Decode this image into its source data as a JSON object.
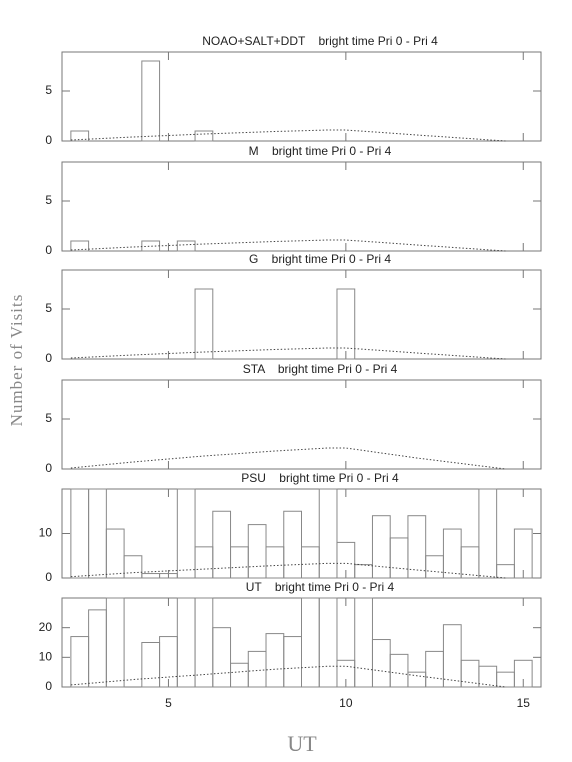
{
  "xlabel": "UT",
  "ylabel": "Number of Visits",
  "chart_data": [
    {
      "type": "histogram",
      "title": "NOAO+SALT+DDT    bright time Pri 0 - Pri 4",
      "bins": [
        2.25,
        2.75,
        3.25,
        3.75,
        4.25,
        4.75,
        5.25,
        5.75,
        6.25,
        6.75,
        7.25,
        7.75,
        8.25,
        8.75,
        9.25,
        9.75,
        10.25,
        10.75,
        11.25,
        11.75,
        12.25,
        12.75,
        13.25,
        13.75,
        14.25,
        14.75,
        15.25
      ],
      "counts": [
        1,
        0,
        0,
        0,
        8,
        0,
        0,
        1,
        0,
        0,
        0,
        0,
        0,
        0,
        0,
        0,
        0,
        0,
        0,
        0,
        0,
        0,
        0,
        0,
        0,
        0
      ],
      "curve": {
        "x": [
          2.25,
          4,
          6,
          8,
          9.5,
          10,
          12,
          14.5
        ],
        "y": [
          0.1,
          0.4,
          0.7,
          0.95,
          1.1,
          1.1,
          0.6,
          0
        ]
      },
      "xlim": [
        2,
        15.5
      ],
      "xticks": [
        5,
        10,
        15
      ],
      "ylim": [
        0,
        8.9
      ],
      "yticks": [
        0,
        5
      ]
    },
    {
      "type": "histogram",
      "title": "M    bright time Pri 0 - Pri 4",
      "bins": [
        2.25,
        2.75,
        3.25,
        3.75,
        4.25,
        4.75,
        5.25,
        5.75,
        6.25,
        6.75,
        7.25,
        7.75,
        8.25,
        8.75,
        9.25,
        9.75,
        10.25,
        10.75,
        11.25,
        11.75,
        12.25,
        12.75,
        13.25,
        13.75,
        14.25,
        14.75,
        15.25
      ],
      "counts": [
        1,
        0,
        0,
        0,
        1,
        0,
        1,
        0,
        0,
        0,
        0,
        0,
        0,
        0,
        0,
        0,
        0,
        0,
        0,
        0,
        0,
        0,
        0,
        0,
        0,
        0
      ],
      "curve": {
        "x": [
          2.25,
          4,
          6,
          8,
          9.5,
          10,
          12,
          14.5
        ],
        "y": [
          0.1,
          0.4,
          0.7,
          0.95,
          1.1,
          1.1,
          0.6,
          0
        ]
      },
      "xlim": [
        2,
        15.5
      ],
      "xticks": [
        5,
        10,
        15
      ],
      "ylim": [
        0,
        8.9
      ],
      "yticks": [
        0,
        5
      ]
    },
    {
      "type": "histogram",
      "title": "G    bright time Pri 0 - Pri 4",
      "bins": [
        2.25,
        2.75,
        3.25,
        3.75,
        4.25,
        4.75,
        5.25,
        5.75,
        6.25,
        6.75,
        7.25,
        7.75,
        8.25,
        8.75,
        9.25,
        9.75,
        10.25,
        10.75,
        11.25,
        11.75,
        12.25,
        12.75,
        13.25,
        13.75,
        14.25,
        14.75,
        15.25
      ],
      "counts": [
        0,
        0,
        0,
        0,
        0,
        0,
        0,
        7,
        0,
        0,
        0,
        0,
        0,
        0,
        0,
        7,
        0,
        0,
        0,
        0,
        0,
        0,
        0,
        0,
        0,
        0
      ],
      "curve": {
        "x": [
          2.25,
          4,
          6,
          8,
          9.5,
          10,
          12,
          14.5
        ],
        "y": [
          0.1,
          0.4,
          0.7,
          0.95,
          1.1,
          1.1,
          0.6,
          0
        ]
      },
      "xlim": [
        2,
        15.5
      ],
      "xticks": [
        5,
        10,
        15
      ],
      "ylim": [
        0,
        8.9
      ],
      "yticks": [
        0,
        5
      ]
    },
    {
      "type": "histogram",
      "title": "STA    bright time Pri 0 - Pri 4",
      "bins": [
        2.25,
        2.75,
        3.25,
        3.75,
        4.25,
        4.75,
        5.25,
        5.75,
        6.25,
        6.75,
        7.25,
        7.75,
        8.25,
        8.75,
        9.25,
        9.75,
        10.25,
        10.75,
        11.25,
        11.75,
        12.25,
        12.75,
        13.25,
        13.75,
        14.25,
        14.75,
        15.25
      ],
      "counts": [
        0,
        0,
        0,
        0,
        0,
        0,
        0,
        0,
        0,
        0,
        0,
        0,
        0,
        0,
        0,
        0,
        0,
        0,
        0,
        0,
        0,
        0,
        0,
        0,
        0,
        0
      ],
      "curve": {
        "x": [
          2.25,
          4,
          6,
          8,
          9.5,
          10,
          12,
          14.5
        ],
        "y": [
          0.1,
          0.7,
          1.3,
          1.8,
          2.1,
          2.1,
          1.1,
          0
        ]
      },
      "xlim": [
        2,
        15.5
      ],
      "xticks": [
        5,
        10,
        15
      ],
      "ylim": [
        0,
        8.9
      ],
      "yticks": [
        0,
        5
      ]
    },
    {
      "type": "histogram",
      "title": "PSU    bright time Pri 0 - Pri 4",
      "bins": [
        2.25,
        2.75,
        3.25,
        3.75,
        4.25,
        4.75,
        5.25,
        5.75,
        6.25,
        6.75,
        7.25,
        7.75,
        8.25,
        8.75,
        9.25,
        9.75,
        10.25,
        10.75,
        11.25,
        11.75,
        12.25,
        12.75,
        13.25,
        13.75,
        14.25,
        14.75,
        15.25
      ],
      "counts": [
        20,
        20,
        11,
        5,
        1,
        1,
        20,
        7,
        15,
        7,
        12,
        7,
        15,
        7,
        20,
        8,
        3,
        14,
        9,
        14,
        5,
        11,
        7,
        20,
        3,
        11
      ],
      "curve": {
        "x": [
          2.25,
          4,
          6,
          8,
          9.5,
          10,
          12,
          14.5
        ],
        "y": [
          0.3,
          1.2,
          2,
          2.8,
          3.3,
          3.3,
          1.8,
          0
        ]
      },
      "xlim": [
        2,
        15.5
      ],
      "xticks": [
        5,
        10,
        15
      ],
      "ylim": [
        0,
        20
      ],
      "yticks": [
        0,
        10
      ]
    },
    {
      "type": "histogram",
      "title": "UT    bright time Pri 0 - Pri 4",
      "bins": [
        2.25,
        2.75,
        3.25,
        3.75,
        4.25,
        4.75,
        5.25,
        5.75,
        6.25,
        6.75,
        7.25,
        7.75,
        8.25,
        8.75,
        9.25,
        9.75,
        10.25,
        10.75,
        11.25,
        11.75,
        12.25,
        12.75,
        13.25,
        13.75,
        14.25,
        14.75,
        15.25
      ],
      "counts": [
        17,
        26,
        30,
        0,
        15,
        17,
        30,
        30,
        20,
        8,
        12,
        18,
        17,
        30,
        30,
        9,
        30,
        16,
        11,
        5,
        12,
        21,
        9,
        7,
        5,
        9
      ],
      "curve": {
        "x": [
          2.25,
          4,
          6,
          8,
          9.5,
          10,
          12,
          14.5
        ],
        "y": [
          0.7,
          2.5,
          4.2,
          6,
          7,
          7,
          3.8,
          0
        ]
      },
      "xlim": [
        2,
        15.5
      ],
      "xticks": [
        5,
        10,
        15
      ],
      "ylim": [
        0,
        30
      ],
      "yticks": [
        0,
        10,
        20
      ]
    }
  ]
}
